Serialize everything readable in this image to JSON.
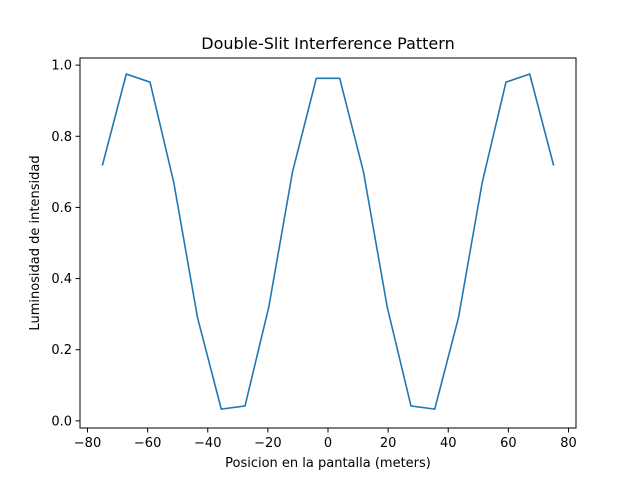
{
  "chart_data": {
    "type": "line",
    "title": "Double-Slit Interference Pattern",
    "xlabel": "Posicion en la pantalla (meters)",
    "ylabel": "Luminosidad de intensidad",
    "xlim": [
      -82.5,
      82.5
    ],
    "ylim": [
      -0.02,
      1.02
    ],
    "xticks": [
      -80,
      -60,
      -40,
      -20,
      0,
      20,
      40,
      60,
      80
    ],
    "xtick_labels": [
      "−80",
      "−60",
      "−40",
      "−20",
      "0",
      "20",
      "40",
      "60",
      "80"
    ],
    "yticks": [
      0.0,
      0.2,
      0.4,
      0.6,
      0.8,
      1.0
    ],
    "ytick_labels": [
      "0.0",
      "0.2",
      "0.4",
      "0.6",
      "0.8",
      "1.0"
    ],
    "grid": false,
    "series": [
      {
        "color": "#1f77b4",
        "x": [
          -75,
          -67.1,
          -59.2,
          -51.3,
          -43.4,
          -35.5,
          -27.6,
          -19.7,
          -11.8,
          -3.9,
          3.9,
          11.8,
          19.7,
          27.6,
          35.5,
          43.4,
          51.3,
          59.2,
          67.1,
          75
        ],
        "y": [
          0.72,
          0.975,
          0.952,
          0.67,
          0.29,
          0.033,
          0.042,
          0.32,
          0.7,
          0.963,
          0.963,
          0.7,
          0.32,
          0.042,
          0.033,
          0.29,
          0.67,
          0.952,
          0.975,
          0.72
        ]
      }
    ]
  }
}
